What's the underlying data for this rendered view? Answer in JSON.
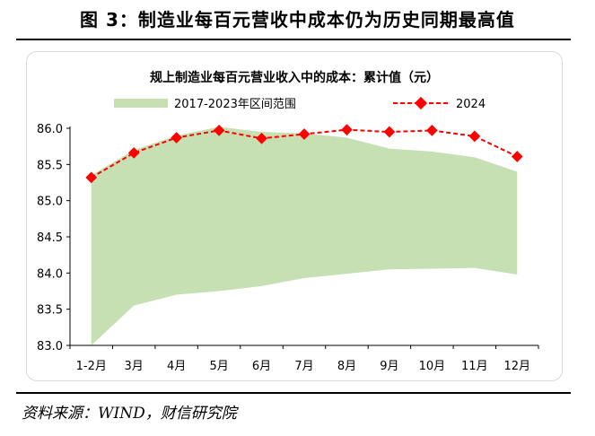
{
  "figure": {
    "title": "图 3：制造业每百元营收中成本仍为历史同期最高值",
    "source": "资料来源：WIND，财信研究院"
  },
  "chart_data": {
    "type": "area",
    "title": "规上制造业每百元营业收入中的成本：累计值（元）",
    "xlabel": "",
    "ylabel": "",
    "categories": [
      "1-2月",
      "3月",
      "4月",
      "5月",
      "6月",
      "7月",
      "8月",
      "9月",
      "10月",
      "11月",
      "12月"
    ],
    "ylim": [
      83.0,
      86.0
    ],
    "yticks": [
      "83.0",
      "83.5",
      "84.0",
      "84.5",
      "85.0",
      "85.5",
      "86.0"
    ],
    "grid": false,
    "legend_position": "top",
    "range": {
      "name": "2017-2023年区间范围",
      "color": "#c6e0b4",
      "min": [
        83.0,
        83.55,
        83.7,
        83.75,
        83.82,
        83.93,
        83.99,
        84.05,
        84.06,
        84.07,
        83.98
      ],
      "max": [
        85.35,
        85.7,
        85.9,
        86.02,
        85.95,
        85.93,
        85.87,
        85.72,
        85.68,
        85.6,
        85.4
      ]
    },
    "series": [
      {
        "name": "2024",
        "color": "#ff0000",
        "values": [
          85.32,
          85.66,
          85.87,
          85.97,
          85.86,
          85.92,
          85.98,
          85.95,
          85.97,
          85.89,
          85.61
        ]
      }
    ]
  }
}
